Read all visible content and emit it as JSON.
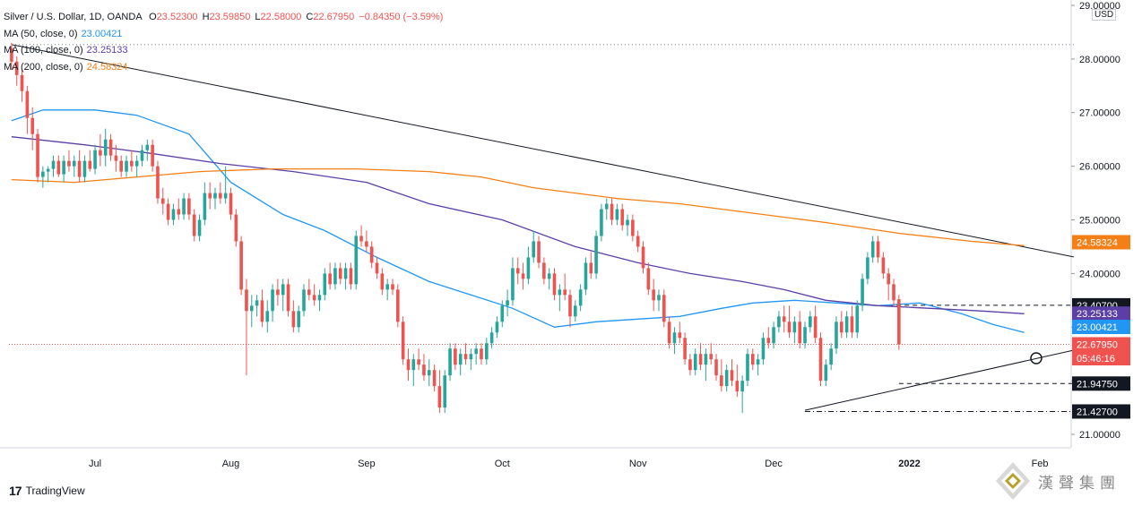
{
  "header": {
    "title": "Silver / U.S. Dollar, 1D, OANDA",
    "ohlc": [
      {
        "label": "O",
        "value": "23.52300"
      },
      {
        "label": "H",
        "value": "23.59850"
      },
      {
        "label": "L",
        "value": "22.58000"
      },
      {
        "label": "C",
        "value": "22.67950"
      },
      {
        "label": "",
        "value": "−0.84350 (−3.59%)"
      }
    ],
    "indicators": [
      {
        "label": "MA (50, close, 0)",
        "value": "23.00421",
        "color": "#2196f3"
      },
      {
        "label": "MA (100, close, 0)",
        "value": "23.25133",
        "color": "#5b3fa6"
      },
      {
        "label": "MA (200, close, 0)",
        "value": "24.58324",
        "color": "#f57f17"
      }
    ]
  },
  "currency": "USD",
  "branding": {
    "tradingview": "TradingView",
    "tv_logo": "17",
    "watermark": "漢聲集團"
  },
  "colors": {
    "up": "#26a69a",
    "down": "#ef5350",
    "trend": "#131722",
    "ma50": "#2196f3",
    "ma100": "#5b3fa6",
    "ma200": "#f57f17"
  },
  "chart_data": {
    "type": "candlestick",
    "ylim": [
      20.75,
      29.1
    ],
    "y_ticks": [
      "29.00000",
      "28.00000",
      "27.00000",
      "26.00000",
      "25.00000",
      "24.00000",
      "23.00000",
      "22.00000",
      "21.00000"
    ],
    "x_ticks": [
      {
        "label": "Jul",
        "index": 16
      },
      {
        "label": "Aug",
        "index": 42
      },
      {
        "label": "Sep",
        "index": 68
      },
      {
        "label": "Oct",
        "index": 94
      },
      {
        "label": "Nov",
        "index": 120
      },
      {
        "label": "Dec",
        "index": 146
      },
      {
        "label": "2022",
        "index": 172
      },
      {
        "label": "Feb",
        "index": 197
      }
    ],
    "candles": [
      [
        28.2,
        28.3,
        27.8,
        27.95
      ],
      [
        27.95,
        28.05,
        27.5,
        27.7
      ],
      [
        27.7,
        27.8,
        27.2,
        27.4
      ],
      [
        27.4,
        27.5,
        26.6,
        26.9
      ],
      [
        26.9,
        27.1,
        26.3,
        26.6
      ],
      [
        26.6,
        26.7,
        25.7,
        25.8
      ],
      [
        25.8,
        26.0,
        25.6,
        25.9
      ],
      [
        25.9,
        26.0,
        25.7,
        25.95
      ],
      [
        25.95,
        26.2,
        25.8,
        26.1
      ],
      [
        26.1,
        26.2,
        25.8,
        25.85
      ],
      [
        25.85,
        26.2,
        25.7,
        26.1
      ],
      [
        26.1,
        26.3,
        25.9,
        26.0
      ],
      [
        26.0,
        26.2,
        25.8,
        26.1
      ],
      [
        26.1,
        26.3,
        25.7,
        25.8
      ],
      [
        25.8,
        26.2,
        25.7,
        26.1
      ],
      [
        26.1,
        26.3,
        25.9,
        25.95
      ],
      [
        25.95,
        26.4,
        25.85,
        26.3
      ],
      [
        26.3,
        26.6,
        26.0,
        26.2
      ],
      [
        26.2,
        26.7,
        26.0,
        26.5
      ],
      [
        26.5,
        26.6,
        26.1,
        26.2
      ],
      [
        26.2,
        26.4,
        25.9,
        26.1
      ],
      [
        26.1,
        26.2,
        25.8,
        25.9
      ],
      [
        25.9,
        26.2,
        25.8,
        26.1
      ],
      [
        26.1,
        26.3,
        25.9,
        26.0
      ],
      [
        26.0,
        26.2,
        25.8,
        26.1
      ],
      [
        26.1,
        26.4,
        26.0,
        26.3
      ],
      [
        26.3,
        26.5,
        26.1,
        26.4
      ],
      [
        26.4,
        26.5,
        25.9,
        26.0
      ],
      [
        26.0,
        26.1,
        25.3,
        25.4
      ],
      [
        25.4,
        25.6,
        25.1,
        25.3
      ],
      [
        25.3,
        25.4,
        24.9,
        25.0
      ],
      [
        25.0,
        25.3,
        24.9,
        25.2
      ],
      [
        25.2,
        25.4,
        25.0,
        25.1
      ],
      [
        25.1,
        25.5,
        25.0,
        25.4
      ],
      [
        25.4,
        25.5,
        25.0,
        25.1
      ],
      [
        25.1,
        25.2,
        24.6,
        24.7
      ],
      [
        24.7,
        25.1,
        24.6,
        25.0
      ],
      [
        25.0,
        25.7,
        24.9,
        25.5
      ],
      [
        25.5,
        25.7,
        25.2,
        25.4
      ],
      [
        25.4,
        25.6,
        25.2,
        25.5
      ],
      [
        25.5,
        25.7,
        25.3,
        25.4
      ],
      [
        25.4,
        26.0,
        25.3,
        25.5
      ],
      [
        25.5,
        25.6,
        25.0,
        25.1
      ],
      [
        25.1,
        25.2,
        24.5,
        24.6
      ],
      [
        24.6,
        24.7,
        23.6,
        23.7
      ],
      [
        23.7,
        23.9,
        22.1,
        23.3
      ],
      [
        23.3,
        23.6,
        23.0,
        23.4
      ],
      [
        23.4,
        23.6,
        23.2,
        23.5
      ],
      [
        23.5,
        23.7,
        23.0,
        23.1
      ],
      [
        23.1,
        23.5,
        22.9,
        23.3
      ],
      [
        23.3,
        23.8,
        23.1,
        23.7
      ],
      [
        23.7,
        23.9,
        23.4,
        23.6
      ],
      [
        23.6,
        23.9,
        23.3,
        23.8
      ],
      [
        23.8,
        23.9,
        23.2,
        23.3
      ],
      [
        23.3,
        23.5,
        22.9,
        23.0
      ],
      [
        23.0,
        23.4,
        22.9,
        23.3
      ],
      [
        23.3,
        23.8,
        23.2,
        23.7
      ],
      [
        23.7,
        23.9,
        23.5,
        23.6
      ],
      [
        23.6,
        23.8,
        23.4,
        23.5
      ],
      [
        23.5,
        23.7,
        23.3,
        23.6
      ],
      [
        23.6,
        24.1,
        23.5,
        24.0
      ],
      [
        24.0,
        24.2,
        23.7,
        23.8
      ],
      [
        23.8,
        24.2,
        23.7,
        24.1
      ],
      [
        24.1,
        24.2,
        23.8,
        23.9
      ],
      [
        23.9,
        24.2,
        23.7,
        24.1
      ],
      [
        24.1,
        24.2,
        23.7,
        23.8
      ],
      [
        23.8,
        24.8,
        23.7,
        24.7
      ],
      [
        24.7,
        24.9,
        24.5,
        24.6
      ],
      [
        24.6,
        24.8,
        24.4,
        24.5
      ],
      [
        24.5,
        24.6,
        24.1,
        24.2
      ],
      [
        24.2,
        24.3,
        23.9,
        24.0
      ],
      [
        24.0,
        24.1,
        23.6,
        23.7
      ],
      [
        23.7,
        23.9,
        23.5,
        23.8
      ],
      [
        23.8,
        23.9,
        23.6,
        23.7
      ],
      [
        23.7,
        23.8,
        23.0,
        23.1
      ],
      [
        23.1,
        23.2,
        22.3,
        22.4
      ],
      [
        22.4,
        22.6,
        22.0,
        22.2
      ],
      [
        22.2,
        22.5,
        21.9,
        22.4
      ],
      [
        22.4,
        22.6,
        22.2,
        22.3
      ],
      [
        22.3,
        22.5,
        22.0,
        22.1
      ],
      [
        22.1,
        22.4,
        21.9,
        22.2
      ],
      [
        22.2,
        22.3,
        21.8,
        21.9
      ],
      [
        21.9,
        22.2,
        21.4,
        21.5
      ],
      [
        21.5,
        22.2,
        21.4,
        22.1
      ],
      [
        22.1,
        22.7,
        22.0,
        22.6
      ],
      [
        22.6,
        22.7,
        22.2,
        22.3
      ],
      [
        22.3,
        22.6,
        22.1,
        22.5
      ],
      [
        22.5,
        22.7,
        22.3,
        22.4
      ],
      [
        22.4,
        22.6,
        22.2,
        22.5
      ],
      [
        22.5,
        22.7,
        22.3,
        22.6
      ],
      [
        22.6,
        22.7,
        22.3,
        22.4
      ],
      [
        22.4,
        22.8,
        22.3,
        22.7
      ],
      [
        22.7,
        23.0,
        22.6,
        22.9
      ],
      [
        22.9,
        23.2,
        22.8,
        23.1
      ],
      [
        23.1,
        23.5,
        23.0,
        23.4
      ],
      [
        23.4,
        23.7,
        23.2,
        23.5
      ],
      [
        23.5,
        24.3,
        23.4,
        24.1
      ],
      [
        24.1,
        24.3,
        23.8,
        24.0
      ],
      [
        24.0,
        24.2,
        23.7,
        23.9
      ],
      [
        23.9,
        24.5,
        23.8,
        24.3
      ],
      [
        24.3,
        24.8,
        24.2,
        24.6
      ],
      [
        24.6,
        24.7,
        24.1,
        24.2
      ],
      [
        24.2,
        24.3,
        23.8,
        23.9
      ],
      [
        23.9,
        24.1,
        23.7,
        24.0
      ],
      [
        24.0,
        24.1,
        23.5,
        23.6
      ],
      [
        23.6,
        23.8,
        23.3,
        23.7
      ],
      [
        23.7,
        24.0,
        23.5,
        23.6
      ],
      [
        23.6,
        23.7,
        23.0,
        23.2
      ],
      [
        23.2,
        23.5,
        23.1,
        23.4
      ],
      [
        23.4,
        23.8,
        23.3,
        23.7
      ],
      [
        23.7,
        24.3,
        23.6,
        24.2
      ],
      [
        24.2,
        24.4,
        23.9,
        24.0
      ],
      [
        24.0,
        24.8,
        23.9,
        24.7
      ],
      [
        24.7,
        25.3,
        24.6,
        25.2
      ],
      [
        25.2,
        25.4,
        25.0,
        25.3
      ],
      [
        25.3,
        25.4,
        24.9,
        25.0
      ],
      [
        25.0,
        25.3,
        24.9,
        25.2
      ],
      [
        25.2,
        25.3,
        24.8,
        24.9
      ],
      [
        24.9,
        25.1,
        24.7,
        25.0
      ],
      [
        25.0,
        25.1,
        24.6,
        24.7
      ],
      [
        24.7,
        24.8,
        24.4,
        24.5
      ],
      [
        24.5,
        24.6,
        24.0,
        24.1
      ],
      [
        24.1,
        24.2,
        23.6,
        23.7
      ],
      [
        23.7,
        23.9,
        23.3,
        23.5
      ],
      [
        23.5,
        23.7,
        23.3,
        23.6
      ],
      [
        23.6,
        23.7,
        23.0,
        23.1
      ],
      [
        23.1,
        23.2,
        22.6,
        22.7
      ],
      [
        22.7,
        23.0,
        22.5,
        22.9
      ],
      [
        22.9,
        23.1,
        22.7,
        22.8
      ],
      [
        22.8,
        22.9,
        22.3,
        22.4
      ],
      [
        22.4,
        22.5,
        22.1,
        22.2
      ],
      [
        22.2,
        22.6,
        22.1,
        22.5
      ],
      [
        22.5,
        22.7,
        22.2,
        22.3
      ],
      [
        22.3,
        22.6,
        22.0,
        22.5
      ],
      [
        22.5,
        22.7,
        22.3,
        22.4
      ],
      [
        22.4,
        22.5,
        22.0,
        22.1
      ],
      [
        22.1,
        22.4,
        21.8,
        21.9
      ],
      [
        21.9,
        22.3,
        21.8,
        22.2
      ],
      [
        22.2,
        22.4,
        21.9,
        22.0
      ],
      [
        22.0,
        22.3,
        21.7,
        21.8
      ],
      [
        21.8,
        22.1,
        21.4,
        22.0
      ],
      [
        22.0,
        22.6,
        21.9,
        22.5
      ],
      [
        22.5,
        22.6,
        22.2,
        22.3
      ],
      [
        22.3,
        22.5,
        22.1,
        22.4
      ],
      [
        22.4,
        22.9,
        22.3,
        22.8
      ],
      [
        22.8,
        23.0,
        22.6,
        22.7
      ],
      [
        22.7,
        23.1,
        22.6,
        23.0
      ],
      [
        23.0,
        23.3,
        22.9,
        23.2
      ],
      [
        23.2,
        23.4,
        22.9,
        23.1
      ],
      [
        23.1,
        23.4,
        22.8,
        22.9
      ],
      [
        22.9,
        23.2,
        22.7,
        23.1
      ],
      [
        23.1,
        23.3,
        22.6,
        22.7
      ],
      [
        22.7,
        23.1,
        22.6,
        23.0
      ],
      [
        23.0,
        23.3,
        22.9,
        23.2
      ],
      [
        23.2,
        23.4,
        22.7,
        22.8
      ],
      [
        22.8,
        22.9,
        21.9,
        22.0
      ],
      [
        22.0,
        22.4,
        21.9,
        22.3
      ],
      [
        22.3,
        22.7,
        22.2,
        22.6
      ],
      [
        22.6,
        23.2,
        22.5,
        23.1
      ],
      [
        23.1,
        23.3,
        22.8,
        22.9
      ],
      [
        22.9,
        23.3,
        22.8,
        23.2
      ],
      [
        23.2,
        23.4,
        22.8,
        22.9
      ],
      [
        22.9,
        23.5,
        22.8,
        23.4
      ],
      [
        23.4,
        24.0,
        23.3,
        23.9
      ],
      [
        23.9,
        24.4,
        23.8,
        24.3
      ],
      [
        24.3,
        24.7,
        24.2,
        24.6
      ],
      [
        24.6,
        24.7,
        24.2,
        24.3
      ],
      [
        24.3,
        24.4,
        23.9,
        24.0
      ],
      [
        24.0,
        24.1,
        23.5,
        23.8
      ],
      [
        23.8,
        23.9,
        23.4,
        23.5
      ],
      [
        23.52,
        23.6,
        22.58,
        22.68
      ]
    ],
    "series": [
      {
        "name": "MA (50, close, 0)",
        "color": "#2196f3",
        "points": [
          [
            0,
            26.85
          ],
          [
            6,
            27.05
          ],
          [
            16,
            27.05
          ],
          [
            24,
            26.95
          ],
          [
            34,
            26.6
          ],
          [
            42,
            25.7
          ],
          [
            52,
            25.1
          ],
          [
            60,
            24.8
          ],
          [
            70,
            24.3
          ],
          [
            80,
            23.85
          ],
          [
            88,
            23.6
          ],
          [
            96,
            23.35
          ],
          [
            104,
            23.0
          ],
          [
            112,
            23.1
          ],
          [
            120,
            23.15
          ],
          [
            128,
            23.2
          ],
          [
            136,
            23.35
          ],
          [
            142,
            23.45
          ],
          [
            150,
            23.5
          ],
          [
            158,
            23.45
          ],
          [
            166,
            23.4
          ],
          [
            174,
            23.45
          ],
          [
            182,
            23.25
          ],
          [
            188,
            23.05
          ],
          [
            194,
            22.9
          ]
        ]
      },
      {
        "name": "MA (100, close, 0)",
        "color": "#5b3fa6",
        "points": [
          [
            0,
            26.55
          ],
          [
            14,
            26.4
          ],
          [
            26,
            26.25
          ],
          [
            40,
            26.05
          ],
          [
            54,
            25.9
          ],
          [
            68,
            25.7
          ],
          [
            80,
            25.3
          ],
          [
            94,
            25.0
          ],
          [
            108,
            24.5
          ],
          [
            120,
            24.2
          ],
          [
            130,
            24.0
          ],
          [
            140,
            23.85
          ],
          [
            148,
            23.7
          ],
          [
            156,
            23.5
          ],
          [
            166,
            23.4
          ],
          [
            176,
            23.35
          ],
          [
            186,
            23.3
          ],
          [
            194,
            23.25
          ]
        ]
      },
      {
        "name": "MA (200, close, 0)",
        "color": "#f57f17",
        "points": [
          [
            0,
            25.75
          ],
          [
            12,
            25.7
          ],
          [
            24,
            25.8
          ],
          [
            36,
            25.9
          ],
          [
            50,
            25.95
          ],
          [
            66,
            25.95
          ],
          [
            80,
            25.9
          ],
          [
            90,
            25.8
          ],
          [
            100,
            25.6
          ],
          [
            116,
            25.4
          ],
          [
            128,
            25.3
          ],
          [
            140,
            25.15
          ],
          [
            156,
            24.95
          ],
          [
            170,
            24.75
          ],
          [
            184,
            24.6
          ],
          [
            194,
            24.52
          ]
        ]
      }
    ],
    "trendlines": [
      {
        "from": [
          0,
          28.27
        ],
        "to": [
          203.5,
          24.31
        ],
        "style": "solid"
      },
      {
        "from": [
          152,
          21.45
        ],
        "to": [
          203.5,
          22.57
        ],
        "style": "solid"
      },
      {
        "from": [
          168,
          23.407
        ],
        "to": [
          203.5,
          23.407
        ],
        "style": "dashed"
      },
      {
        "from": [
          170,
          21.9475
        ],
        "to": [
          203.5,
          21.9475
        ],
        "style": "dashed"
      },
      {
        "from": [
          152,
          21.427
        ],
        "to": [
          203.5,
          21.427
        ],
        "style": "dashdot"
      },
      {
        "from": [
          0,
          28.27
        ],
        "to": [
          203.5,
          28.27
        ],
        "style": "dotted"
      }
    ],
    "last_close": 22.6795,
    "price_labels": [
      {
        "text": "24.58324",
        "value": 24.58324,
        "bg": "#f57f17"
      },
      {
        "text": "23.40700",
        "value": 23.407,
        "bg": "#131722"
      },
      {
        "text": "23.25133",
        "value": 23.25133,
        "bg": "#5b3fa6"
      },
      {
        "text": "23.00421",
        "value": 23.00421,
        "bg": "#2196f3"
      },
      {
        "text": "22.67950",
        "value": 22.6795,
        "bg": "#ef5350"
      },
      {
        "text": "05:46:16",
        "value": 22.42,
        "bg": "#ef5350"
      },
      {
        "text": "21.94750",
        "value": 21.9475,
        "bg": "#131722"
      },
      {
        "text": "21.42700",
        "value": 21.427,
        "bg": "#131722"
      }
    ],
    "marker": {
      "index": 196.3,
      "value": 22.42
    }
  }
}
